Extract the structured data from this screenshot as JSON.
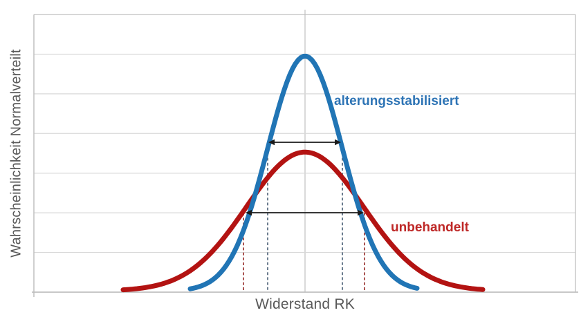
{
  "figure": {
    "background": "#FFFFFF",
    "grid_color": "#D9D9D9",
    "axis_color": "#BFBFBF",
    "axis_text_color": "#595959",
    "arrow_color": "#1A1A1A"
  },
  "chart_data": {
    "type": "line",
    "title": "",
    "xlabel": "Widerstand RK",
    "ylabel": "Wahrscheinlichkeit Normalverteilt",
    "x_ticks": [],
    "y_ticks": [],
    "grid": "horizontal gridlines plus single vertical center gridline",
    "legend_position": "labels beside curves",
    "description": "Two normal probability density curves over resistance RK: the age-stabilised (alterungsstabilisiert) distribution is tall and narrow, the untreated (unbehandelt) distribution is flat and wide; both share the same mean. Double-headed arrows with dashed drop lines mark the width (about one standard deviation) of each curve.",
    "series": [
      {
        "name": "alterungsstabilisiert",
        "distribution": "normal",
        "color": "#2175B5",
        "label_color": "#2E74B5",
        "mean_frac": 0.5006,
        "sigma_frac": 0.069,
        "peak_frac": 0.8458,
        "x_start_frac": 0.2886,
        "x_end_frac": 0.7088
      },
      {
        "name": "unbehandelt",
        "distribution": "normal",
        "color": "#B31312",
        "label_color": "#BE2726",
        "mean_frac": 0.5006,
        "sigma_frac": 0.1079,
        "peak_frac": 0.5,
        "x_start_frac": 0.1648,
        "x_end_frac": 0.8327
      }
    ],
    "annotations": {
      "width_arrows": [
        {
          "series": "alterungsstabilisiert",
          "meaning": "width (±1 sigma) of narrow blue curve",
          "y_frac": 0.4602,
          "x1_frac": 0.433,
          "x2_frac": 0.5671
        },
        {
          "series": "unbehandelt",
          "meaning": "width (±1 sigma) of wide red curve",
          "y_frac": 0.7139,
          "x1_frac": 0.3908,
          "x2_frac": 0.6092
        }
      ],
      "guides": {
        "blue": {
          "series": "alterungsstabilisiert",
          "color": "#50647A",
          "x1_frac": 0.4317,
          "x2_frac": 0.5696,
          "top_frac": 0.4627
        },
        "red": {
          "series": "unbehandelt",
          "color": "#9C3734",
          "x1_frac": 0.387,
          "x2_frac": 0.6105,
          "top_frac": 0.7139
        }
      }
    }
  }
}
